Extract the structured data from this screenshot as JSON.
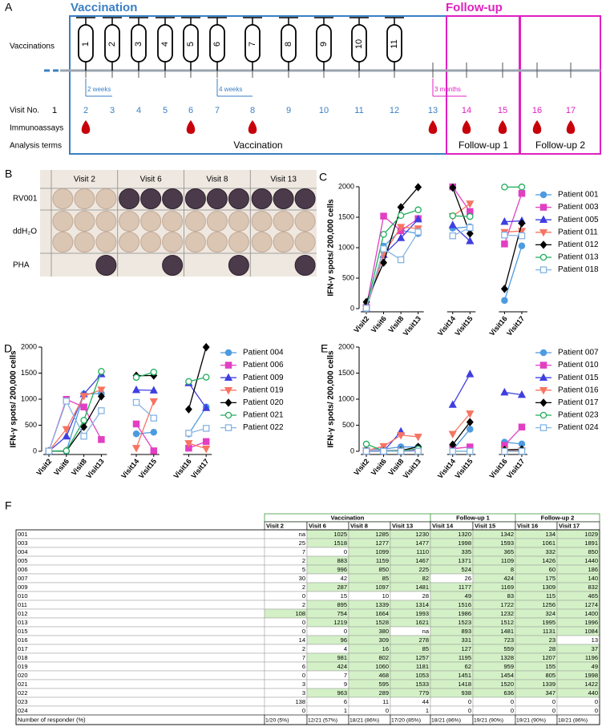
{
  "panel_a": {
    "label": "A",
    "vaccination_title": "Vaccination",
    "followup_title": "Follow-up",
    "vaccinations_label": "Vaccinations",
    "vaccines": [
      "1",
      "2",
      "3",
      "4",
      "5",
      "6",
      "7",
      "8",
      "9",
      "10",
      "11"
    ],
    "intervals": [
      "2 weeks",
      "4 weeks",
      "3 months"
    ],
    "visit_label": "Visit No.",
    "visits": [
      "1",
      "2",
      "3",
      "4",
      "5",
      "6",
      "7",
      "8",
      "9",
      "10",
      "11",
      "12",
      "13",
      "14",
      "15",
      "16",
      "17"
    ],
    "immunoassays_label": "Immunoassays",
    "analysis_label": "Analysis terms",
    "terms": [
      "Vaccination",
      "Follow-up 1",
      "Follow-up 2"
    ]
  },
  "panel_b": {
    "label": "B",
    "columns": [
      "Visit 2",
      "Visit 6",
      "Visit 8",
      "Visit 13"
    ],
    "rows": [
      "RV001",
      "ddH₂O",
      "PHA"
    ]
  },
  "chart_data": [
    {
      "type": "line",
      "label": "C",
      "y_label": "IFN-γ spots/ 200,000 cells",
      "categories": [
        "Visit2",
        "Visit6",
        "Visit8",
        "Visit13",
        null,
        "Visit14",
        "Visit15",
        null,
        "Visit16",
        "Visit17"
      ],
      "ylim": [
        0,
        2000
      ],
      "yticks": [
        0,
        500,
        1000,
        1500,
        2000
      ],
      "series": [
        {
          "name": "Patient 001",
          "color": "#4c9be0",
          "marker": "circle",
          "values": [
            null,
            1025,
            1285,
            1230,
            null,
            1320,
            1342,
            null,
            134,
            1029
          ]
        },
        {
          "name": "Patient 003",
          "color": "#e23fc3",
          "marker": "square",
          "values": [
            25,
            1518,
            1277,
            1477,
            null,
            1998,
            1593,
            null,
            1061,
            1891
          ]
        },
        {
          "name": "Patient 005",
          "color": "#3f3fe0",
          "marker": "triangle-up",
          "values": [
            2,
            883,
            1159,
            1467,
            null,
            1371,
            1109,
            null,
            1426,
            1440
          ]
        },
        {
          "name": "Patient 011",
          "color": "#f77462",
          "marker": "triangle-down",
          "values": [
            2,
            895,
            1339,
            1314,
            null,
            1516,
            1722,
            null,
            1256,
            1274
          ]
        },
        {
          "name": "Patient 012",
          "color": "#000000",
          "marker": "diamond",
          "values": [
            108,
            754,
            1664,
            1993,
            null,
            1986,
            1232,
            null,
            324,
            1400
          ]
        },
        {
          "name": "Patient 013",
          "color": "#1fae5c",
          "marker": "circle-open",
          "values": [
            0,
            1219,
            1528,
            1621,
            null,
            1523,
            1512,
            null,
            1995,
            1996
          ]
        },
        {
          "name": "Patient 018",
          "color": "#86b4e2",
          "marker": "square-open",
          "values": [
            7,
            981,
            802,
            1257,
            null,
            1195,
            1328,
            null,
            1207,
            1196
          ]
        }
      ]
    },
    {
      "type": "line",
      "label": "D",
      "y_label": "IFN-γ spots/ 200,000 cells",
      "categories": [
        "Visit2",
        "Visit6",
        "Visit8",
        "Visit13",
        null,
        "Visit14",
        "Visit15",
        null,
        "Visit16",
        "Visit17"
      ],
      "ylim": [
        0,
        2000
      ],
      "yticks": [
        0,
        500,
        1000,
        1500,
        2000
      ],
      "series": [
        {
          "name": "Patient 004",
          "color": "#4c9be0",
          "marker": "circle",
          "values": [
            7,
            0,
            1099,
            1110,
            null,
            335,
            365,
            null,
            332,
            850
          ]
        },
        {
          "name": "Patient 006",
          "color": "#e23fc3",
          "marker": "square",
          "values": [
            5,
            996,
            850,
            225,
            null,
            524,
            8,
            null,
            60,
            186
          ]
        },
        {
          "name": "Patient 009",
          "color": "#3f3fe0",
          "marker": "triangle-up",
          "values": [
            2,
            287,
            1097,
            1481,
            null,
            1177,
            1169,
            null,
            1309,
            832
          ]
        },
        {
          "name": "Patient 019",
          "color": "#f77462",
          "marker": "triangle-down",
          "values": [
            6,
            424,
            1060,
            1181,
            null,
            62,
            959,
            null,
            155,
            49
          ]
        },
        {
          "name": "Patient 020",
          "color": "#000000",
          "marker": "diamond",
          "values": [
            0,
            7,
            468,
            1053,
            null,
            1451,
            1454,
            null,
            805,
            1998
          ]
        },
        {
          "name": "Patient 021",
          "color": "#1fae5c",
          "marker": "circle-open",
          "values": [
            3,
            9,
            595,
            1533,
            null,
            1418,
            1520,
            null,
            1339,
            1422
          ]
        },
        {
          "name": "Patient 022",
          "color": "#86b4e2",
          "marker": "square-open",
          "values": [
            3,
            963,
            289,
            779,
            null,
            938,
            636,
            null,
            347,
            440
          ]
        }
      ]
    },
    {
      "type": "line",
      "label": "E",
      "y_label": "IFN-γ spots/ 200,000 cells",
      "categories": [
        "Visit2",
        "Visit6",
        "Visit8",
        "Visit13",
        null,
        "Visit14",
        "Visit15",
        null,
        "Visit16",
        "Visit17"
      ],
      "ylim": [
        0,
        2000
      ],
      "yticks": [
        0,
        500,
        1000,
        1500,
        2000
      ],
      "series": [
        {
          "name": "Patient 007",
          "color": "#4c9be0",
          "marker": "circle",
          "values": [
            30,
            42,
            85,
            82,
            null,
            26,
            424,
            null,
            175,
            140
          ]
        },
        {
          "name": "Patient 010",
          "color": "#e23fc3",
          "marker": "square",
          "values": [
            0,
            15,
            10,
            28,
            null,
            49,
            83,
            null,
            115,
            465
          ]
        },
        {
          "name": "Patient 015",
          "color": "#3f3fe0",
          "marker": "triangle-up",
          "values": [
            0,
            0,
            380,
            null,
            null,
            893,
            1481,
            null,
            1131,
            1084
          ]
        },
        {
          "name": "Patient 016",
          "color": "#f77462",
          "marker": "triangle-down",
          "values": [
            14,
            96,
            309,
            278,
            null,
            331,
            723,
            null,
            23,
            13
          ]
        },
        {
          "name": "Patient 017",
          "color": "#000000",
          "marker": "diamond",
          "values": [
            2,
            4,
            16,
            85,
            null,
            127,
            559,
            null,
            28,
            37
          ]
        },
        {
          "name": "Patient 023",
          "color": "#1fae5c",
          "marker": "circle-open",
          "values": [
            138,
            6,
            11,
            44,
            null,
            0,
            0,
            null,
            0,
            0
          ]
        },
        {
          "name": "Patient 024",
          "color": "#86b4e2",
          "marker": "square-open",
          "values": [
            0,
            1,
            0,
            1,
            null,
            0,
            0,
            null,
            0,
            0
          ]
        }
      ]
    }
  ],
  "table": {
    "label": "F",
    "groups": [
      "Vaccination",
      "Follow-up 1",
      "Follow-up 2"
    ],
    "columns": [
      "Visit 2",
      "Visit 6",
      "Visit 8",
      "Visit 13",
      "Visit 14",
      "Visit 15",
      "Visit 16",
      "Visit 17"
    ],
    "highlight_color": "#d3f0c6",
    "rows": [
      {
        "id": "001",
        "cells": [
          "na",
          "1025",
          "1285",
          "1230",
          "1320",
          "1342",
          "134",
          "1029"
        ],
        "highlight": [
          false,
          true,
          true,
          true,
          true,
          true,
          true,
          true
        ]
      },
      {
        "id": "003",
        "cells": [
          "25",
          "1518",
          "1277",
          "1477",
          "1998",
          "1593",
          "1061",
          "1891"
        ],
        "highlight": [
          false,
          true,
          true,
          true,
          true,
          true,
          true,
          true
        ]
      },
      {
        "id": "004",
        "cells": [
          "7",
          "0",
          "1099",
          "1110",
          "335",
          "365",
          "332",
          "850"
        ],
        "highlight": [
          false,
          false,
          true,
          true,
          true,
          true,
          true,
          true
        ]
      },
      {
        "id": "005",
        "cells": [
          "2",
          "883",
          "1159",
          "1467",
          "1371",
          "1109",
          "1426",
          "1440"
        ],
        "highlight": [
          false,
          true,
          true,
          true,
          true,
          true,
          true,
          true
        ]
      },
      {
        "id": "006",
        "cells": [
          "5",
          "996",
          "850",
          "225",
          "524",
          "8",
          "60",
          "186"
        ],
        "highlight": [
          false,
          true,
          true,
          true,
          true,
          true,
          true,
          true
        ]
      },
      {
        "id": "007",
        "cells": [
          "30",
          "42",
          "85",
          "82",
          "26",
          "424",
          "175",
          "140"
        ],
        "highlight": [
          false,
          false,
          true,
          true,
          false,
          true,
          true,
          true
        ]
      },
      {
        "id": "009",
        "cells": [
          "2",
          "287",
          "1097",
          "1481",
          "1177",
          "1169",
          "1309",
          "832"
        ],
        "highlight": [
          false,
          true,
          true,
          true,
          true,
          true,
          true,
          true
        ]
      },
      {
        "id": "010",
        "cells": [
          "0",
          "15",
          "10",
          "28",
          "49",
          "83",
          "115",
          "465"
        ],
        "highlight": [
          false,
          false,
          false,
          false,
          true,
          true,
          true,
          true
        ]
      },
      {
        "id": "011",
        "cells": [
          "2",
          "895",
          "1339",
          "1314",
          "1516",
          "1722",
          "1256",
          "1274"
        ],
        "highlight": [
          false,
          true,
          true,
          true,
          true,
          true,
          true,
          true
        ]
      },
      {
        "id": "012",
        "cells": [
          "108",
          "754",
          "1664",
          "1993",
          "1986",
          "1232",
          "324",
          "1400"
        ],
        "highlight": [
          true,
          true,
          true,
          true,
          true,
          true,
          true,
          true
        ]
      },
      {
        "id": "013",
        "cells": [
          "0",
          "1219",
          "1528",
          "1621",
          "1523",
          "1512",
          "1995",
          "1996"
        ],
        "highlight": [
          false,
          true,
          true,
          true,
          true,
          true,
          true,
          true
        ]
      },
      {
        "id": "015",
        "cells": [
          "0",
          "0",
          "380",
          "na",
          "893",
          "1481",
          "1131",
          "1084"
        ],
        "highlight": [
          false,
          false,
          true,
          false,
          true,
          true,
          true,
          true
        ]
      },
      {
        "id": "016",
        "cells": [
          "14",
          "96",
          "309",
          "278",
          "331",
          "723",
          "23",
          "13"
        ],
        "highlight": [
          false,
          true,
          true,
          true,
          true,
          true,
          true,
          false
        ]
      },
      {
        "id": "017",
        "cells": [
          "2",
          "4",
          "16",
          "85",
          "127",
          "559",
          "28",
          "37"
        ],
        "highlight": [
          false,
          false,
          true,
          true,
          true,
          true,
          true,
          true
        ]
      },
      {
        "id": "018",
        "cells": [
          "7",
          "981",
          "802",
          "1257",
          "1195",
          "1328",
          "1207",
          "1196"
        ],
        "highlight": [
          false,
          true,
          true,
          true,
          true,
          true,
          true,
          true
        ]
      },
      {
        "id": "019",
        "cells": [
          "6",
          "424",
          "1060",
          "1181",
          "62",
          "959",
          "155",
          "49"
        ],
        "highlight": [
          false,
          true,
          true,
          true,
          true,
          true,
          true,
          true
        ]
      },
      {
        "id": "020",
        "cells": [
          "0",
          "7",
          "468",
          "1053",
          "1451",
          "1454",
          "805",
          "1998"
        ],
        "highlight": [
          false,
          false,
          true,
          true,
          true,
          true,
          true,
          true
        ]
      },
      {
        "id": "021",
        "cells": [
          "3",
          "9",
          "595",
          "1533",
          "1418",
          "1520",
          "1339",
          "1422"
        ],
        "highlight": [
          false,
          false,
          true,
          true,
          true,
          true,
          true,
          true
        ]
      },
      {
        "id": "022",
        "cells": [
          "3",
          "963",
          "289",
          "779",
          "938",
          "636",
          "347",
          "440"
        ],
        "highlight": [
          false,
          true,
          true,
          true,
          true,
          true,
          true,
          true
        ]
      },
      {
        "id": "023",
        "cells": [
          "138",
          "6",
          "11",
          "44",
          "0",
          "0",
          "0",
          "0"
        ],
        "highlight": [
          false,
          false,
          false,
          false,
          false,
          false,
          false,
          false
        ]
      },
      {
        "id": "024",
        "cells": [
          "0",
          "1",
          "0",
          "1",
          "0",
          "0",
          "0",
          "0"
        ],
        "highlight": [
          false,
          false,
          false,
          false,
          false,
          false,
          false,
          false
        ]
      }
    ],
    "summary": {
      "label": "Number of responder (%)",
      "cells": [
        "1/20 (5%)",
        "12/21 (57%)",
        "18/21 (86%)",
        "17/20 (85%)",
        "18/21 (86%)",
        "19/21 (90%)",
        "19/21 (90%)",
        "18/21 (86%)"
      ]
    }
  }
}
